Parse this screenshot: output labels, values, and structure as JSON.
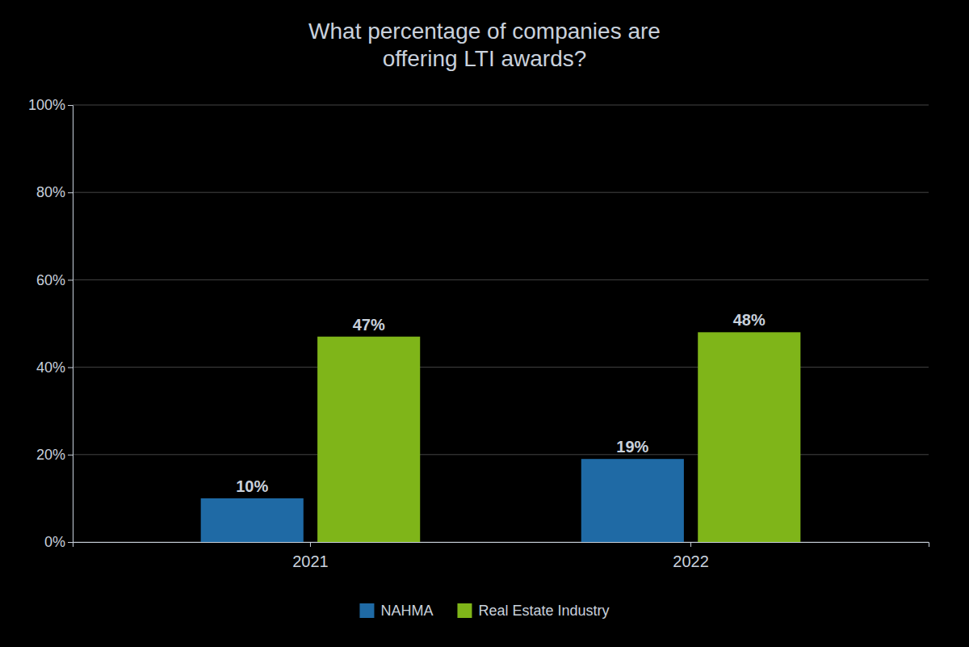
{
  "chart_data": {
    "type": "bar",
    "title": "What percentage of companies are\noffering LTI awards?",
    "categories": [
      "2021",
      "2022"
    ],
    "series": [
      {
        "name": "NAHMA",
        "color": "#1f6aa5",
        "values": [
          10,
          19
        ],
        "value_labels": [
          "10%",
          "19%"
        ]
      },
      {
        "name": "Real Estate Industry",
        "color": "#7fb519",
        "values": [
          47,
          48
        ],
        "value_labels": [
          "47%",
          "48%"
        ]
      }
    ],
    "ylim": [
      0,
      100
    ],
    "yticks": [
      {
        "value": 0,
        "label": "0%"
      },
      {
        "value": 20,
        "label": "20%"
      },
      {
        "value": 40,
        "label": "40%"
      },
      {
        "value": 60,
        "label": "60%"
      },
      {
        "value": 80,
        "label": "80%"
      },
      {
        "value": 100,
        "label": "100%"
      }
    ],
    "grid": true,
    "data_labels": true,
    "legend": "bottom"
  }
}
